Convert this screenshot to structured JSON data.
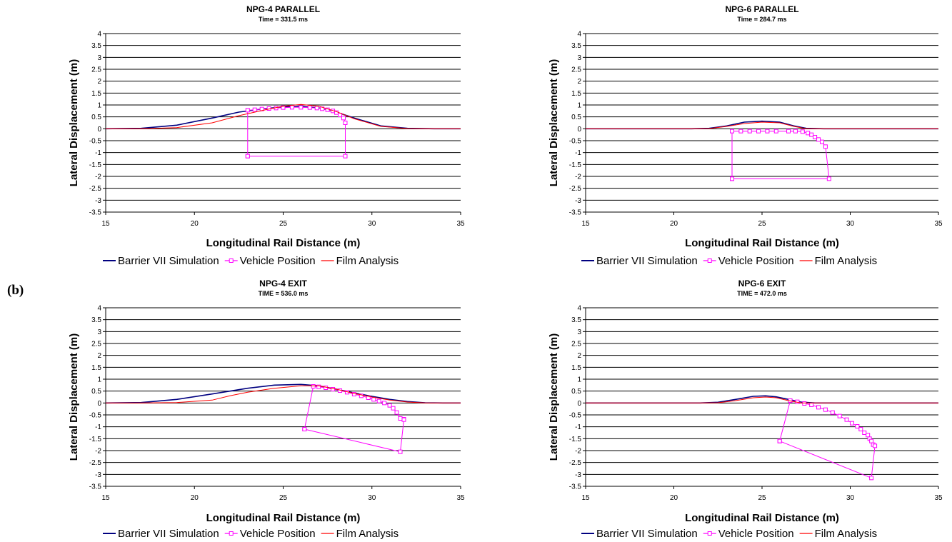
{
  "panel_label": "(b)",
  "chart_data": [
    {
      "type": "line",
      "title": "NPG-4 PARALLEL",
      "subtitle": "Time = 331.5 ms",
      "xlabel": "Longitudinal Rail Distance (m)",
      "ylabel": "Lateral Displacement (m)",
      "xlim": [
        15,
        35
      ],
      "ylim": [
        -3.5,
        4
      ],
      "xticks": [
        "15",
        "20",
        "25",
        "30",
        "35"
      ],
      "yticks": [
        "-3.5",
        "-3",
        "-2.5",
        "-2",
        "-1.5",
        "-1",
        "-0.5",
        "0",
        "0.5",
        "1",
        "1.5",
        "2",
        "2.5",
        "3",
        "3.5",
        "4"
      ],
      "grid": true,
      "legend_position": "bottom",
      "colors": {
        "simulation": "#000080",
        "vehicle": "#ff00ff",
        "film": "#ff0000"
      },
      "series": [
        {
          "name": "Barrier VII Simulation",
          "marker": "none",
          "x": [
            15,
            17,
            19,
            21,
            22.5,
            24,
            25,
            26,
            27,
            28,
            29,
            30.5,
            32,
            33.5,
            35
          ],
          "y": [
            0,
            0.02,
            0.15,
            0.45,
            0.7,
            0.85,
            0.92,
            0.94,
            0.88,
            0.7,
            0.45,
            0.12,
            0.02,
            0,
            0
          ]
        },
        {
          "name": "Vehicle Position",
          "marker": "square",
          "x": [
            23.0,
            23.0,
            23.4,
            23.8,
            24.2,
            24.6,
            25.0,
            25.5,
            26.0,
            26.5,
            26.9,
            27.2,
            27.5,
            27.8,
            28.0,
            28.2,
            28.4,
            28.5,
            28.5,
            23.0
          ],
          "y": [
            -1.15,
            0.78,
            0.8,
            0.83,
            0.85,
            0.87,
            0.89,
            0.9,
            0.9,
            0.89,
            0.87,
            0.84,
            0.8,
            0.75,
            0.68,
            0.58,
            0.45,
            0.25,
            -1.15,
            -1.15
          ]
        },
        {
          "name": "Film Analysis",
          "marker": "none",
          "x": [
            15,
            17,
            19,
            21,
            22.5,
            24,
            25,
            26,
            27,
            28,
            29,
            30.5,
            32,
            33.5,
            35
          ],
          "y": [
            0,
            0,
            0.05,
            0.25,
            0.55,
            0.8,
            0.95,
            1.02,
            0.95,
            0.72,
            0.42,
            0.1,
            0.01,
            0,
            0
          ]
        }
      ]
    },
    {
      "type": "line",
      "title": "NPG-6 PARALLEL",
      "subtitle": "Time = 284.7 ms",
      "xlabel": "Longitudinal Rail Distance (m)",
      "ylabel": "Lateral Displacement (m)",
      "xlim": [
        15,
        35
      ],
      "ylim": [
        -3.5,
        4
      ],
      "xticks": [
        "15",
        "20",
        "25",
        "30",
        "35"
      ],
      "yticks": [
        "-3.5",
        "-3",
        "-2.5",
        "-2",
        "-1.5",
        "-1",
        "-0.5",
        "0",
        "0.5",
        "1",
        "1.5",
        "2",
        "2.5",
        "3",
        "3.5",
        "4"
      ],
      "grid": true,
      "legend_position": "bottom",
      "colors": {
        "simulation": "#000080",
        "vehicle": "#ff00ff",
        "film": "#ff0000"
      },
      "series": [
        {
          "name": "Barrier VII Simulation",
          "marker": "none",
          "x": [
            15,
            21,
            22,
            23,
            24,
            25,
            26,
            26.8,
            27.5,
            28.5,
            35
          ],
          "y": [
            0,
            0,
            0.02,
            0.12,
            0.28,
            0.32,
            0.28,
            0.12,
            0.02,
            0,
            0
          ]
        },
        {
          "name": "Vehicle Position",
          "marker": "square",
          "x": [
            23.3,
            23.3,
            23.8,
            24.3,
            24.8,
            25.3,
            25.8,
            26.5,
            26.9,
            27.3,
            27.6,
            27.8,
            28.0,
            28.2,
            28.4,
            28.6,
            28.8,
            23.3
          ],
          "y": [
            -2.1,
            -0.1,
            -0.1,
            -0.1,
            -0.1,
            -0.1,
            -0.1,
            -0.1,
            -0.1,
            -0.12,
            -0.18,
            -0.25,
            -0.35,
            -0.45,
            -0.55,
            -0.75,
            -2.1,
            -2.1
          ]
        },
        {
          "name": "Film Analysis",
          "marker": "none",
          "x": [
            15,
            21,
            22,
            23,
            24,
            25,
            26,
            26.8,
            27.5,
            35
          ],
          "y": [
            0,
            0,
            0.01,
            0.1,
            0.22,
            0.28,
            0.25,
            0.1,
            0,
            0
          ]
        }
      ]
    },
    {
      "type": "line",
      "title": "NPG-4 EXIT",
      "subtitle": "TIME = 536.0 ms",
      "xlabel": "Longitudinal Rail Distance (m)",
      "ylabel": "Lateral Displacement (m)",
      "xlim": [
        15,
        35
      ],
      "ylim": [
        -3.5,
        4
      ],
      "xticks": [
        "15",
        "20",
        "25",
        "30",
        "35"
      ],
      "yticks": [
        "-3.5",
        "-3",
        "-2.5",
        "-2",
        "-1.5",
        "-1",
        "-0.5",
        "0",
        "0.5",
        "1",
        "1.5",
        "2",
        "2.5",
        "3",
        "3.5",
        "4"
      ],
      "grid": true,
      "legend_position": "bottom",
      "colors": {
        "simulation": "#000080",
        "vehicle": "#ff00ff",
        "film": "#ff0000"
      },
      "series": [
        {
          "name": "Barrier VII Simulation",
          "marker": "none",
          "x": [
            15,
            17,
            19,
            21,
            23,
            24.5,
            26,
            27,
            28,
            29,
            30,
            31,
            32,
            33,
            34,
            35
          ],
          "y": [
            0,
            0.02,
            0.15,
            0.38,
            0.62,
            0.75,
            0.78,
            0.72,
            0.58,
            0.42,
            0.28,
            0.15,
            0.06,
            0.01,
            0,
            0
          ]
        },
        {
          "name": "Vehicle Position",
          "marker": "square",
          "x": [
            26.2,
            26.7,
            27.0,
            27.4,
            27.8,
            28.2,
            28.6,
            29.0,
            29.4,
            29.8,
            30.1,
            30.4,
            30.7,
            31.0,
            31.2,
            31.4,
            31.6,
            31.8,
            31.8,
            31.6,
            26.2
          ],
          "y": [
            -1.1,
            0.7,
            0.68,
            0.64,
            0.58,
            0.52,
            0.45,
            0.37,
            0.3,
            0.22,
            0.15,
            0.08,
            0.0,
            -0.1,
            -0.22,
            -0.4,
            -0.65,
            -0.68,
            -0.7,
            -2.05,
            -1.1
          ]
        },
        {
          "name": "Film Analysis",
          "marker": "none",
          "x": [
            15,
            17,
            19,
            21,
            22,
            23,
            24.5,
            26,
            27,
            28,
            29,
            30,
            31,
            32,
            33,
            35
          ],
          "y": [
            0,
            0,
            0.02,
            0.12,
            0.3,
            0.45,
            0.62,
            0.72,
            0.72,
            0.58,
            0.4,
            0.25,
            0.12,
            0.04,
            0,
            0
          ]
        }
      ]
    },
    {
      "type": "line",
      "title": "NPG-6 EXIT",
      "subtitle": "TIME = 472.0 ms",
      "xlabel": "Longitudinal Rail Distance (m)",
      "ylabel": "Lateral Displacement (m)",
      "xlim": [
        15,
        35
      ],
      "ylim": [
        -3.5,
        4
      ],
      "xticks": [
        "15",
        "20",
        "25",
        "30",
        "35"
      ],
      "yticks": [
        "-3.5",
        "-3",
        "-2.5",
        "-2",
        "-1.5",
        "-1",
        "-0.5",
        "0",
        "0.5",
        "1",
        "1.5",
        "2",
        "2.5",
        "3",
        "3.5",
        "4"
      ],
      "grid": true,
      "legend_position": "bottom",
      "colors": {
        "simulation": "#000080",
        "vehicle": "#ff00ff",
        "film": "#ff0000"
      },
      "series": [
        {
          "name": "Barrier VII Simulation",
          "marker": "none",
          "x": [
            15,
            21.5,
            22.5,
            23.5,
            24.5,
            25.2,
            25.8,
            26.5,
            27.2,
            28,
            35
          ],
          "y": [
            0,
            0,
            0.03,
            0.15,
            0.28,
            0.3,
            0.26,
            0.15,
            0.04,
            0,
            0
          ]
        },
        {
          "name": "Vehicle Position",
          "marker": "square",
          "x": [
            26.0,
            26.6,
            27.0,
            27.4,
            27.8,
            28.2,
            28.6,
            29.0,
            29.4,
            29.8,
            30.1,
            30.4,
            30.6,
            30.8,
            31.0,
            31.1,
            31.2,
            31.3,
            31.4,
            31.2,
            26.0
          ],
          "y": [
            -1.6,
            0.1,
            0.05,
            -0.02,
            -0.08,
            -0.18,
            -0.28,
            -0.4,
            -0.55,
            -0.7,
            -0.85,
            -0.98,
            -1.1,
            -1.25,
            -1.35,
            -1.5,
            -1.6,
            -1.75,
            -1.8,
            -3.15,
            -1.6
          ]
        },
        {
          "name": "Film Analysis",
          "marker": "none",
          "x": [
            15,
            21.5,
            22.5,
            23.5,
            24.5,
            25.2,
            25.8,
            26.5,
            27.2,
            35
          ],
          "y": [
            0,
            0,
            0.01,
            0.1,
            0.22,
            0.25,
            0.22,
            0.1,
            0,
            0
          ]
        }
      ]
    }
  ]
}
